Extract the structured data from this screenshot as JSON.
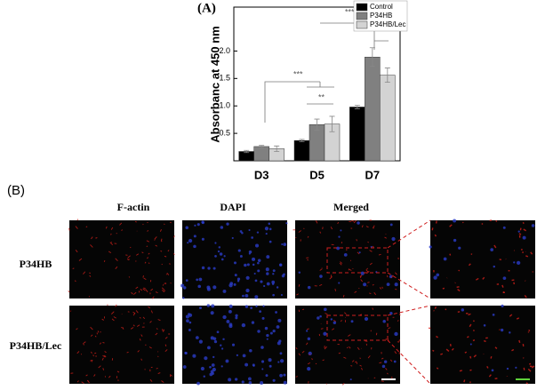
{
  "chart_data": {
    "type": "bar",
    "title": "(A)",
    "y_label": "Absorbanc at 450 nm",
    "categories": [
      "D3",
      "D5",
      "D7"
    ],
    "series": [
      {
        "name": "Control",
        "color": "#000000",
        "values": [
          0.17,
          0.37,
          0.98
        ],
        "errors": [
          0.02,
          0.02,
          0.03
        ]
      },
      {
        "name": "P34HB",
        "color": "#808080",
        "values": [
          0.26,
          0.66,
          1.89
        ],
        "errors": [
          0.02,
          0.1,
          0.17
        ]
      },
      {
        "name": "P34HB/Lec",
        "color": "#d3d3d3",
        "values": [
          0.22,
          0.67,
          1.56
        ],
        "errors": [
          0.05,
          0.14,
          0.13
        ]
      }
    ],
    "ylim": [
      0,
      2.8
    ],
    "yticks": [
      0.5,
      {
        "value": 1,
        "label": "1.0"
      },
      1.5,
      {
        "value": 2,
        "label": "2.0"
      }
    ],
    "annotations": [
      "***",
      "***",
      "**",
      "**"
    ],
    "legend": "upper right"
  },
  "panel_b": {
    "label": "(B)",
    "column_headers": [
      "F-actin",
      "DAPI",
      "Merged"
    ],
    "row_labels": [
      "P34HB",
      "P34HB/Lec"
    ]
  }
}
